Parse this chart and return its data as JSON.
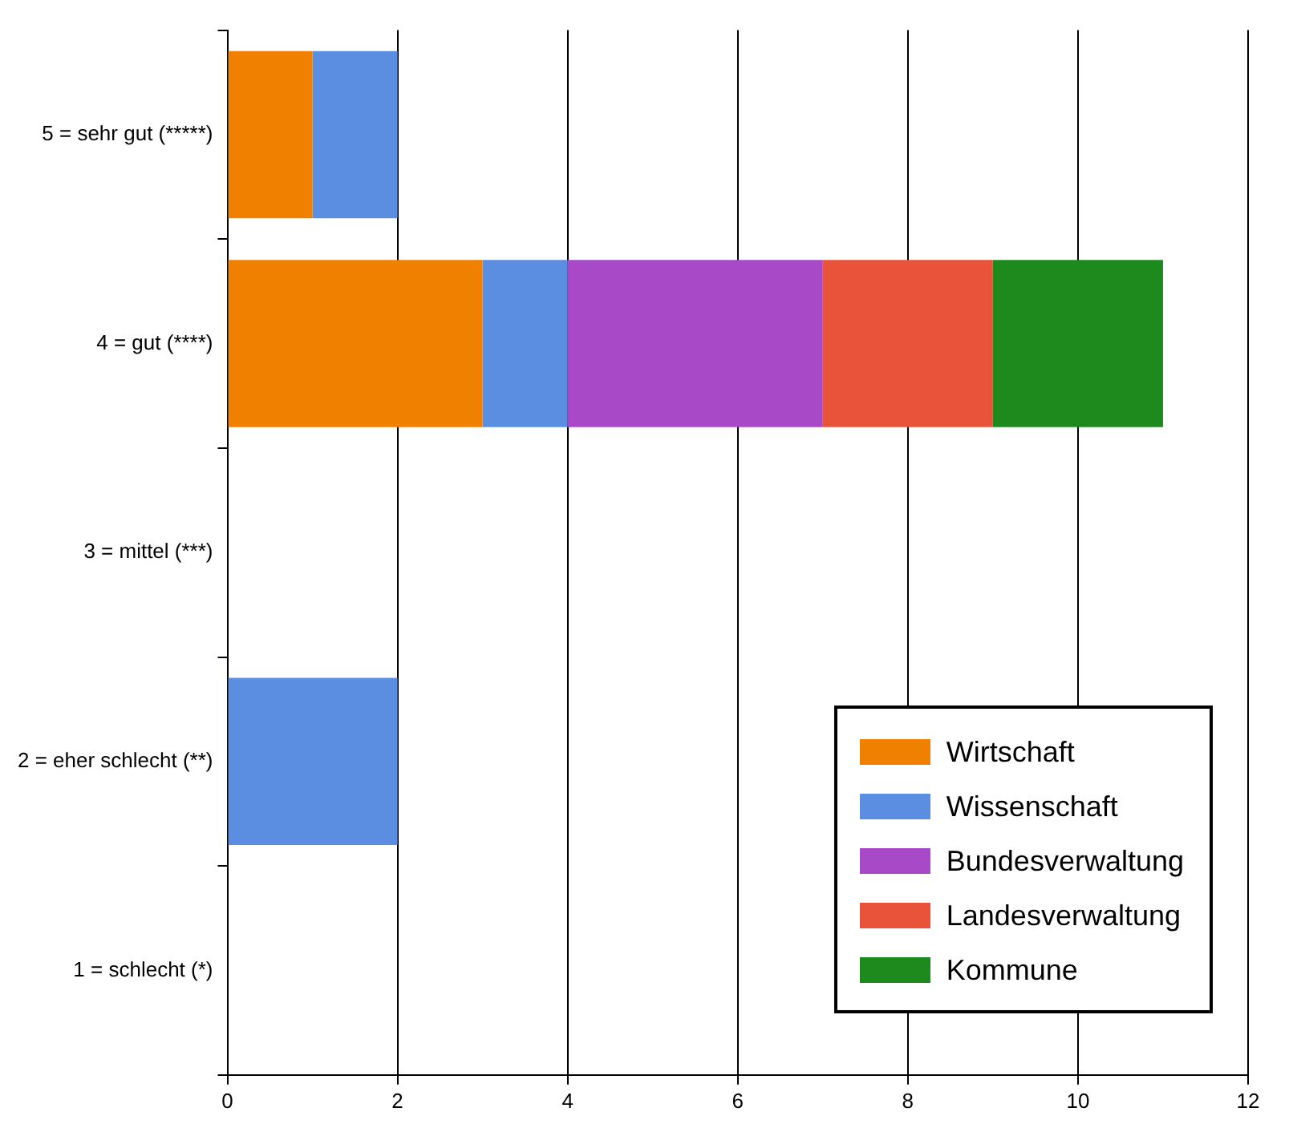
{
  "chart_data": {
    "type": "bar",
    "orientation": "horizontal",
    "stacked": true,
    "categories": [
      "5 = sehr gut (*****)",
      "4 = gut (****)",
      "3 = mittel (***)",
      "2 = eher schlecht (**)",
      "1 = schlecht (*)"
    ],
    "series": [
      {
        "name": "Wirtschaft",
        "color": "#f08000",
        "values": [
          1,
          3,
          0,
          0,
          0
        ]
      },
      {
        "name": "Wissenschaft",
        "color": "#5b8de0",
        "values": [
          1,
          1,
          0,
          2,
          0
        ]
      },
      {
        "name": "Bundesverwaltung",
        "color": "#a849c8",
        "values": [
          0,
          3,
          0,
          0,
          0
        ]
      },
      {
        "name": "Landesverwaltung",
        "color": "#e8533a",
        "values": [
          0,
          2,
          0,
          0,
          0
        ]
      },
      {
        "name": "Kommune",
        "color": "#1e8a1e",
        "values": [
          0,
          2,
          0,
          0,
          0
        ]
      }
    ],
    "xlim": [
      0,
      12
    ],
    "xticks": [
      0,
      2,
      4,
      6,
      8,
      10,
      12
    ],
    "grid": "x",
    "legend": "bottom right"
  }
}
